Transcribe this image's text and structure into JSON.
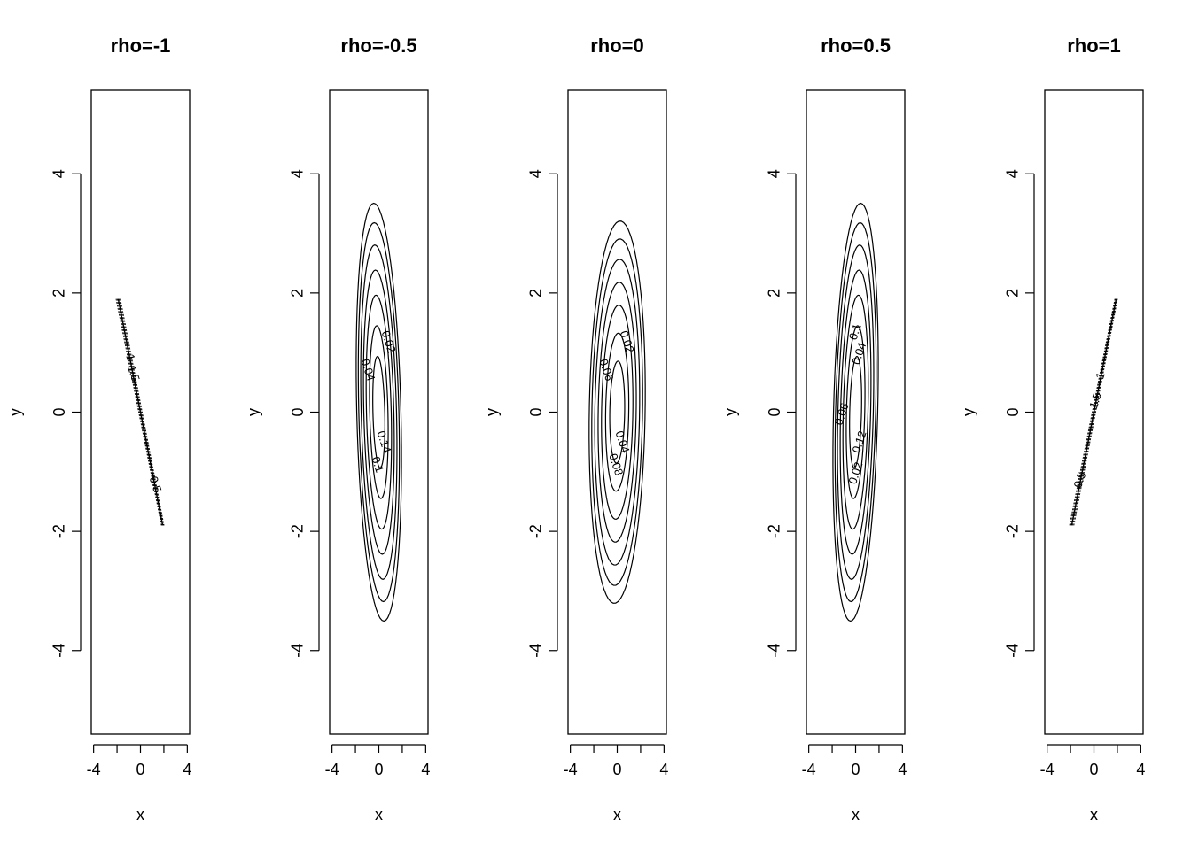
{
  "chart_data": [
    {
      "type": "contour",
      "title": "rho=-1",
      "rho": -1,
      "xlabel": "x",
      "ylabel": "y",
      "xlim": [
        -4.2,
        4.2
      ],
      "ylim": [
        -5.4,
        5.4
      ],
      "x_ticks": [
        -4,
        -2,
        0,
        2,
        4
      ],
      "x_tick_labels": [
        "-4",
        "0",
        "4"
      ],
      "y_ticks": [
        -4,
        -2,
        0,
        2,
        4
      ],
      "y_tick_labels": [
        "-4",
        "-2",
        "0",
        "2",
        "4"
      ],
      "contour_labels": [
        "1",
        "1.5",
        "0.5"
      ],
      "segment": {
        "from": [
          -1.9,
          1.9
        ],
        "to": [
          1.9,
          -1.9
        ]
      }
    },
    {
      "type": "contour",
      "title": "rho=-0.5",
      "rho": -0.5,
      "xlabel": "x",
      "ylabel": "y",
      "xlim": [
        -4.2,
        4.2
      ],
      "ylim": [
        -5.4,
        5.4
      ],
      "x_ticks": [
        -4,
        -2,
        0,
        2,
        4
      ],
      "x_tick_labels": [
        "-4",
        "0",
        "4"
      ],
      "y_ticks": [
        -4,
        -2,
        0,
        2,
        4
      ],
      "y_tick_labels": [
        "-4",
        "-2",
        "0",
        "2",
        "4"
      ],
      "contour_labels": [
        "0.14",
        "0.1",
        "0.04",
        "0.02"
      ]
    },
    {
      "type": "contour",
      "title": "rho=0",
      "rho": 0,
      "xlabel": "x",
      "ylabel": "y",
      "xlim": [
        -4.2,
        4.2
      ],
      "ylim": [
        -5.4,
        5.4
      ],
      "x_ticks": [
        -4,
        -2,
        0,
        2,
        4
      ],
      "x_tick_labels": [
        "-4",
        "0",
        "4"
      ],
      "y_ticks": [
        -4,
        -2,
        0,
        2,
        4
      ],
      "y_tick_labels": [
        "-4",
        "-2",
        "0",
        "2",
        "4"
      ],
      "contour_labels": [
        "0.04",
        "0.08",
        "0.06",
        "0.02"
      ]
    },
    {
      "type": "contour",
      "title": "rho=0.5",
      "rho": 0.5,
      "xlabel": "x",
      "ylabel": "y",
      "xlim": [
        -4.2,
        4.2
      ],
      "ylim": [
        -5.4,
        5.4
      ],
      "x_ticks": [
        -4,
        -2,
        0,
        2,
        4
      ],
      "x_tick_labels": [
        "-4",
        "0",
        "4"
      ],
      "y_ticks": [
        -4,
        -2,
        0,
        2,
        4
      ],
      "y_tick_labels": [
        "-4",
        "-2",
        "0",
        "2",
        "4"
      ],
      "contour_labels": [
        "0.12",
        "0.02",
        "0.06",
        "0.1",
        "0.04"
      ]
    },
    {
      "type": "contour",
      "title": "rho=1",
      "rho": 1,
      "xlabel": "x",
      "ylabel": "y",
      "xlim": [
        -4.2,
        4.2
      ],
      "ylim": [
        -5.4,
        5.4
      ],
      "x_ticks": [
        -4,
        -2,
        0,
        2,
        4
      ],
      "x_tick_labels": [
        "-4",
        "0",
        "4"
      ],
      "y_ticks": [
        -4,
        -2,
        0,
        2,
        4
      ],
      "y_tick_labels": [
        "-4",
        "-2",
        "0",
        "2",
        "4"
      ],
      "contour_labels": [
        "0.5",
        "1.5",
        "1"
      ],
      "segment": {
        "from": [
          -1.9,
          -1.9
        ],
        "to": [
          1.9,
          1.9
        ]
      }
    }
  ]
}
